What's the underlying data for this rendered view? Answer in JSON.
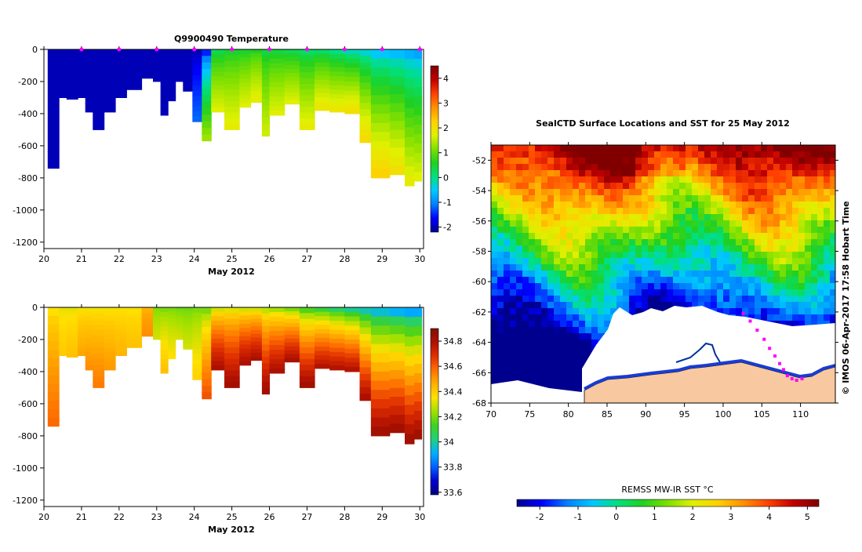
{
  "colors": {
    "temp_scale": [
      "#00008f",
      "#0000ff",
      "#0080ff",
      "#00c8ff",
      "#00e080",
      "#20d020",
      "#80e000",
      "#e0f000",
      "#ffd000",
      "#ff9000",
      "#ff4000",
      "#c00000",
      "#800000"
    ],
    "sal_scale": [
      "#000080",
      "#0000d0",
      "#0060ff",
      "#00b0ff",
      "#20d080",
      "#40d020",
      "#a0e000",
      "#ffe000",
      "#ffb000",
      "#ff7000",
      "#e03000",
      "#b01000",
      "#801000"
    ],
    "ice": "#ffffff",
    "land": "#f8c8a0",
    "seal_track": "#ff00ff"
  },
  "temperature_panel": {
    "title": "Q9900490  Temperature",
    "xlabel": "May 2012"
  },
  "salinity_panel": {
    "xlabel": "May 2012"
  },
  "map_panel": {
    "title": "SealCTD Surface Locations and SST for 25 May 2012",
    "side_note": "© IMOS 06-Apr-2017 17:58 Hobart Time",
    "colorbar_label": "REMSS MW-IR SST °C"
  },
  "chart_data": [
    {
      "type": "heatmap",
      "title": "Q9900490  Temperature",
      "xlabel": "May 2012",
      "ylabel": "",
      "x_ticks": [
        20,
        21,
        22,
        23,
        24,
        25,
        26,
        27,
        28,
        29,
        30
      ],
      "y_ticks": [
        0,
        -200,
        -400,
        -600,
        -800,
        -1000,
        -1200
      ],
      "ylim": [
        -1240,
        0
      ],
      "xlim": [
        20,
        30.1
      ],
      "colorbar": {
        "ticks": [
          -2,
          -1,
          0,
          1,
          2,
          3,
          4
        ],
        "range": [
          -2.2,
          4.5
        ]
      },
      "surface_markers_x": [
        21,
        22,
        23,
        24,
        25,
        26,
        27,
        28,
        29,
        30
      ],
      "profiles": [
        {
          "x0": 20.1,
          "x1": 20.4,
          "maxdepth": -740,
          "t0": -2,
          "t1": -2
        },
        {
          "x0": 20.4,
          "x1": 20.6,
          "maxdepth": -300,
          "t0": -2,
          "t1": -2
        },
        {
          "x0": 20.6,
          "x1": 20.9,
          "maxdepth": -310,
          "t0": -2,
          "t1": -2
        },
        {
          "x0": 20.9,
          "x1": 21.1,
          "maxdepth": -300,
          "t0": -2,
          "t1": -2
        },
        {
          "x0": 21.1,
          "x1": 21.3,
          "maxdepth": -390,
          "t0": -2,
          "t1": -2
        },
        {
          "x0": 21.3,
          "x1": 21.6,
          "maxdepth": -500,
          "t0": -2,
          "t1": -2
        },
        {
          "x0": 21.6,
          "x1": 21.9,
          "maxdepth": -390,
          "t0": -2,
          "t1": -2
        },
        {
          "x0": 21.9,
          "x1": 22.2,
          "maxdepth": -300,
          "t0": -2,
          "t1": -2
        },
        {
          "x0": 22.2,
          "x1": 22.6,
          "maxdepth": -250,
          "t0": -2,
          "t1": -2
        },
        {
          "x0": 22.6,
          "x1": 22.9,
          "maxdepth": -180,
          "t0": -2,
          "t1": -2
        },
        {
          "x0": 22.9,
          "x1": 23.1,
          "maxdepth": -200,
          "t0": -2,
          "t1": -2
        },
        {
          "x0": 23.1,
          "x1": 23.3,
          "maxdepth": -410,
          "t0": -2,
          "t1": -2
        },
        {
          "x0": 23.3,
          "x1": 23.5,
          "maxdepth": -320,
          "t0": -2,
          "t1": -2
        },
        {
          "x0": 23.5,
          "x1": 23.7,
          "maxdepth": -200,
          "t0": -2,
          "t1": -2
        },
        {
          "x0": 23.7,
          "x1": 23.95,
          "maxdepth": -260,
          "t0": -2,
          "t1": -2
        },
        {
          "x0": 23.95,
          "x1": 24.2,
          "maxdepth": -450,
          "t0": -2,
          "t1": -1.2
        },
        {
          "x0": 24.2,
          "x1": 24.45,
          "maxdepth": -570,
          "t0": -1.5,
          "t1": 1.3
        },
        {
          "x0": 24.45,
          "x1": 24.8,
          "maxdepth": -390,
          "t0": 0.3,
          "t1": 1.7
        },
        {
          "x0": 24.8,
          "x1": 25.2,
          "maxdepth": -500,
          "t0": 0.5,
          "t1": 1.8
        },
        {
          "x0": 25.2,
          "x1": 25.5,
          "maxdepth": -360,
          "t0": 0.5,
          "t1": 1.7
        },
        {
          "x0": 25.5,
          "x1": 25.8,
          "maxdepth": -330,
          "t0": 0.6,
          "t1": 1.8
        },
        {
          "x0": 25.8,
          "x1": 26.0,
          "maxdepth": -540,
          "t0": 0.4,
          "t1": 1.6
        },
        {
          "x0": 26.0,
          "x1": 26.4,
          "maxdepth": -410,
          "t0": 0.4,
          "t1": 1.7
        },
        {
          "x0": 26.4,
          "x1": 26.8,
          "maxdepth": -340,
          "t0": 0.3,
          "t1": 1.7
        },
        {
          "x0": 26.8,
          "x1": 27.2,
          "maxdepth": -500,
          "t0": 0.2,
          "t1": 1.8
        },
        {
          "x0": 27.2,
          "x1": 27.6,
          "maxdepth": -380,
          "t0": 0.2,
          "t1": 1.9
        },
        {
          "x0": 27.6,
          "x1": 28.0,
          "maxdepth": -390,
          "t0": 0.0,
          "t1": 1.9
        },
        {
          "x0": 28.0,
          "x1": 28.4,
          "maxdepth": -400,
          "t0": -0.2,
          "t1": 2.0
        },
        {
          "x0": 28.4,
          "x1": 28.7,
          "maxdepth": -580,
          "t0": -0.3,
          "t1": 2.1
        },
        {
          "x0": 28.7,
          "x1": 29.2,
          "maxdepth": -800,
          "t0": -0.5,
          "t1": 2.2
        },
        {
          "x0": 29.2,
          "x1": 29.6,
          "maxdepth": -780,
          "t0": -0.6,
          "t1": 2.0
        },
        {
          "x0": 29.6,
          "x1": 29.85,
          "maxdepth": -850,
          "t0": -0.7,
          "t1": 1.8
        },
        {
          "x0": 29.85,
          "x1": 30.05,
          "maxdepth": -820,
          "t0": -0.8,
          "t1": 1.7
        }
      ]
    },
    {
      "type": "heatmap",
      "title": "",
      "xlabel": "May 2012",
      "ylabel": "",
      "x_ticks": [
        20,
        21,
        22,
        23,
        24,
        25,
        26,
        27,
        28,
        29,
        30
      ],
      "y_ticks": [
        0,
        -200,
        -400,
        -600,
        -800,
        -1000,
        -1200
      ],
      "ylim": [
        -1240,
        0
      ],
      "xlim": [
        20,
        30.1
      ],
      "colorbar": {
        "ticks": [
          33.6,
          33.8,
          34,
          34.2,
          34.4,
          34.6,
          34.8
        ],
        "range": [
          33.58,
          34.9
        ]
      },
      "profiles": [
        {
          "x0": 20.1,
          "x1": 20.4,
          "maxdepth": -740,
          "s0": 34.35,
          "s1": 34.58
        },
        {
          "x0": 20.4,
          "x1": 20.6,
          "maxdepth": -300,
          "s0": 34.32,
          "s1": 34.4
        },
        {
          "x0": 20.6,
          "x1": 20.9,
          "maxdepth": -310,
          "s0": 34.32,
          "s1": 34.42
        },
        {
          "x0": 20.9,
          "x1": 21.1,
          "maxdepth": -300,
          "s0": 34.34,
          "s1": 34.48
        },
        {
          "x0": 21.1,
          "x1": 21.3,
          "maxdepth": -390,
          "s0": 34.34,
          "s1": 34.52
        },
        {
          "x0": 21.3,
          "x1": 21.6,
          "maxdepth": -500,
          "s0": 34.34,
          "s1": 34.55
        },
        {
          "x0": 21.6,
          "x1": 21.9,
          "maxdepth": -390,
          "s0": 34.34,
          "s1": 34.5
        },
        {
          "x0": 21.9,
          "x1": 22.2,
          "maxdepth": -300,
          "s0": 34.34,
          "s1": 34.45
        },
        {
          "x0": 22.2,
          "x1": 22.6,
          "maxdepth": -250,
          "s0": 34.34,
          "s1": 34.42
        },
        {
          "x0": 22.6,
          "x1": 22.9,
          "maxdepth": -180,
          "s0": 34.45,
          "s1": 34.52
        },
        {
          "x0": 22.9,
          "x1": 23.1,
          "maxdepth": -200,
          "s0": 34.2,
          "s1": 34.3
        },
        {
          "x0": 23.1,
          "x1": 23.3,
          "maxdepth": -410,
          "s0": 34.2,
          "s1": 34.42
        },
        {
          "x0": 23.3,
          "x1": 23.5,
          "maxdepth": -320,
          "s0": 34.2,
          "s1": 34.35
        },
        {
          "x0": 23.5,
          "x1": 23.7,
          "maxdepth": -200,
          "s0": 34.18,
          "s1": 34.3
        },
        {
          "x0": 23.7,
          "x1": 23.95,
          "maxdepth": -260,
          "s0": 34.18,
          "s1": 34.3
        },
        {
          "x0": 23.95,
          "x1": 24.2,
          "maxdepth": -450,
          "s0": 34.2,
          "s1": 34.38
        },
        {
          "x0": 24.2,
          "x1": 24.45,
          "maxdepth": -570,
          "s0": 34.2,
          "s1": 34.62
        },
        {
          "x0": 24.45,
          "x1": 24.8,
          "maxdepth": -390,
          "s0": 34.3,
          "s1": 34.8
        },
        {
          "x0": 24.8,
          "x1": 25.2,
          "maxdepth": -500,
          "s0": 34.32,
          "s1": 34.82
        },
        {
          "x0": 25.2,
          "x1": 25.5,
          "maxdepth": -360,
          "s0": 34.3,
          "s1": 34.8
        },
        {
          "x0": 25.5,
          "x1": 25.8,
          "maxdepth": -330,
          "s0": 34.3,
          "s1": 34.8
        },
        {
          "x0": 25.8,
          "x1": 26.0,
          "maxdepth": -540,
          "s0": 34.28,
          "s1": 34.82
        },
        {
          "x0": 26.0,
          "x1": 26.4,
          "maxdepth": -410,
          "s0": 34.25,
          "s1": 34.8
        },
        {
          "x0": 26.4,
          "x1": 26.8,
          "maxdepth": -340,
          "s0": 34.2,
          "s1": 34.8
        },
        {
          "x0": 26.8,
          "x1": 27.2,
          "maxdepth": -500,
          "s0": 34.15,
          "s1": 34.82
        },
        {
          "x0": 27.2,
          "x1": 27.6,
          "maxdepth": -380,
          "s0": 34.1,
          "s1": 34.78
        },
        {
          "x0": 27.6,
          "x1": 28.0,
          "maxdepth": -390,
          "s0": 34.05,
          "s1": 34.78
        },
        {
          "x0": 28.0,
          "x1": 28.4,
          "maxdepth": -400,
          "s0": 34.0,
          "s1": 34.78
        },
        {
          "x0": 28.4,
          "x1": 28.7,
          "maxdepth": -580,
          "s0": 33.98,
          "s1": 34.8
        },
        {
          "x0": 28.7,
          "x1": 29.2,
          "maxdepth": -800,
          "s0": 33.95,
          "s1": 34.82
        },
        {
          "x0": 29.2,
          "x1": 29.6,
          "maxdepth": -780,
          "s0": 33.92,
          "s1": 34.82
        },
        {
          "x0": 29.6,
          "x1": 29.85,
          "maxdepth": -850,
          "s0": 33.9,
          "s1": 34.82
        },
        {
          "x0": 29.85,
          "x1": 30.05,
          "maxdepth": -820,
          "s0": 33.9,
          "s1": 34.82
        }
      ]
    },
    {
      "type": "heatmap",
      "title": "SealCTD Surface Locations and SST for 25 May 2012",
      "xlabel": "",
      "ylabel": "",
      "x_ticks": [
        70,
        75,
        80,
        85,
        90,
        95,
        100,
        105,
        110
      ],
      "y_ticks": [
        -52,
        -54,
        -56,
        -58,
        -60,
        -62,
        -64,
        -66,
        -68
      ],
      "xlim": [
        70,
        114.5
      ],
      "ylim": [
        -68,
        -51
      ],
      "colorbar": {
        "label": "REMSS MW-IR SST °C",
        "ticks": [
          -2,
          -1,
          0,
          1,
          2,
          3,
          4,
          5
        ],
        "range": [
          -2.6,
          5.3
        ]
      },
      "seal_track": [
        [
          102.6,
          -62.1
        ],
        [
          103.5,
          -62.6
        ],
        [
          104.4,
          -63.2
        ],
        [
          105.3,
          -63.8
        ],
        [
          106.0,
          -64.4
        ],
        [
          106.7,
          -64.9
        ],
        [
          107.3,
          -65.4
        ],
        [
          107.8,
          -65.8
        ],
        [
          108.3,
          -66.2
        ],
        [
          108.9,
          -66.4
        ],
        [
          109.5,
          -66.5
        ],
        [
          110.2,
          -66.4
        ]
      ]
    }
  ]
}
